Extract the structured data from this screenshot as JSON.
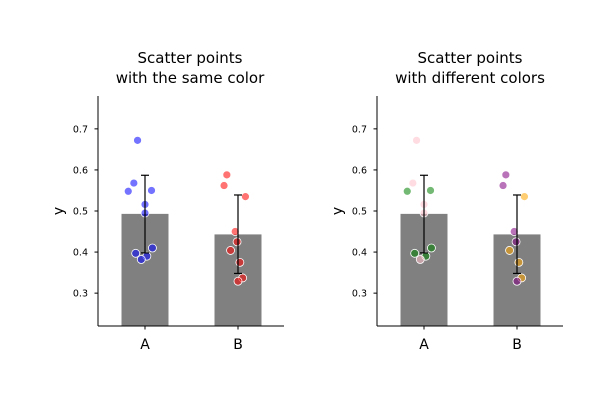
{
  "chart_data": [
    {
      "type": "bar",
      "title": [
        "Scatter points",
        "with the same color"
      ],
      "xlabel": "",
      "ylabel": "y",
      "categories": [
        "A",
        "B"
      ],
      "yticks": [
        "0.3",
        "0.4",
        "0.5",
        "0.6",
        "0.7"
      ],
      "ylim": [
        0.22,
        0.78
      ],
      "bar_color": "#808080",
      "bars": [
        {
          "category": "A",
          "mean": 0.493,
          "err_low": 0.398,
          "err_high": 0.587
        },
        {
          "category": "B",
          "mean": 0.443,
          "err_low": 0.348,
          "err_high": 0.539
        }
      ],
      "points": [
        {
          "category": "A",
          "offset": -0.1,
          "y": 0.397,
          "color": "#0000ff"
        },
        {
          "category": "A",
          "offset": 0.0,
          "y": 0.495,
          "color": "#0000ff"
        },
        {
          "category": "A",
          "offset": 0.0,
          "y": 0.516,
          "color": "#0000ff"
        },
        {
          "category": "A",
          "offset": -0.18,
          "y": 0.548,
          "color": "#0000ff"
        },
        {
          "category": "A",
          "offset": -0.12,
          "y": 0.568,
          "color": "#0000ff"
        },
        {
          "category": "A",
          "offset": 0.07,
          "y": 0.55,
          "color": "#0000ff"
        },
        {
          "category": "A",
          "offset": 0.08,
          "y": 0.41,
          "color": "#0000ff"
        },
        {
          "category": "A",
          "offset": 0.02,
          "y": 0.39,
          "color": "#0000ff"
        },
        {
          "category": "A",
          "offset": -0.04,
          "y": 0.382,
          "color": "#0000ff"
        },
        {
          "category": "A",
          "offset": -0.08,
          "y": 0.672,
          "color": "#0000ff"
        },
        {
          "category": "B",
          "offset": -0.15,
          "y": 0.562,
          "color": "#ff0000"
        },
        {
          "category": "B",
          "offset": -0.12,
          "y": 0.588,
          "color": "#ff0000"
        },
        {
          "category": "B",
          "offset": 0.08,
          "y": 0.535,
          "color": "#ff0000"
        },
        {
          "category": "B",
          "offset": -0.03,
          "y": 0.45,
          "color": "#ff0000"
        },
        {
          "category": "B",
          "offset": -0.01,
          "y": 0.425,
          "color": "#ff0000"
        },
        {
          "category": "B",
          "offset": -0.08,
          "y": 0.404,
          "color": "#ff0000"
        },
        {
          "category": "B",
          "offset": 0.02,
          "y": 0.375,
          "color": "#ff0000"
        },
        {
          "category": "B",
          "offset": 0.05,
          "y": 0.337,
          "color": "#ff0000"
        },
        {
          "category": "B",
          "offset": 0.0,
          "y": 0.329,
          "color": "#ff0000"
        }
      ]
    },
    {
      "type": "bar",
      "title": [
        "Scatter points",
        "with different colors"
      ],
      "xlabel": "",
      "ylabel": "y",
      "categories": [
        "A",
        "B"
      ],
      "yticks": [
        "0.3",
        "0.4",
        "0.5",
        "0.6",
        "0.7"
      ],
      "ylim": [
        0.22,
        0.78
      ],
      "bar_color": "#808080",
      "bars": [
        {
          "category": "A",
          "mean": 0.493,
          "err_low": 0.398,
          "err_high": 0.587
        },
        {
          "category": "B",
          "mean": 0.443,
          "err_low": 0.348,
          "err_high": 0.539
        }
      ],
      "points": [
        {
          "category": "A",
          "offset": -0.1,
          "y": 0.397,
          "color": "#008000"
        },
        {
          "category": "A",
          "offset": 0.0,
          "y": 0.495,
          "color": "#ffc0cb"
        },
        {
          "category": "A",
          "offset": 0.0,
          "y": 0.516,
          "color": "#ffc0cb"
        },
        {
          "category": "A",
          "offset": -0.18,
          "y": 0.548,
          "color": "#008000"
        },
        {
          "category": "A",
          "offset": -0.12,
          "y": 0.568,
          "color": "#ffc0cb"
        },
        {
          "category": "A",
          "offset": 0.07,
          "y": 0.55,
          "color": "#008000"
        },
        {
          "category": "A",
          "offset": 0.08,
          "y": 0.41,
          "color": "#008000"
        },
        {
          "category": "A",
          "offset": 0.02,
          "y": 0.39,
          "color": "#008000"
        },
        {
          "category": "A",
          "offset": -0.04,
          "y": 0.382,
          "color": "#ffc0cb"
        },
        {
          "category": "A",
          "offset": -0.08,
          "y": 0.672,
          "color": "#ffc0cb"
        },
        {
          "category": "B",
          "offset": -0.15,
          "y": 0.562,
          "color": "#800080"
        },
        {
          "category": "B",
          "offset": -0.12,
          "y": 0.588,
          "color": "#800080"
        },
        {
          "category": "B",
          "offset": 0.08,
          "y": 0.535,
          "color": "#ffa500"
        },
        {
          "category": "B",
          "offset": -0.03,
          "y": 0.45,
          "color": "#800080"
        },
        {
          "category": "B",
          "offset": -0.01,
          "y": 0.425,
          "color": "#800080"
        },
        {
          "category": "B",
          "offset": -0.08,
          "y": 0.404,
          "color": "#ffa500"
        },
        {
          "category": "B",
          "offset": 0.02,
          "y": 0.375,
          "color": "#ffa500"
        },
        {
          "category": "B",
          "offset": 0.05,
          "y": 0.337,
          "color": "#ffa500"
        },
        {
          "category": "B",
          "offset": 0.0,
          "y": 0.329,
          "color": "#800080"
        }
      ]
    }
  ]
}
